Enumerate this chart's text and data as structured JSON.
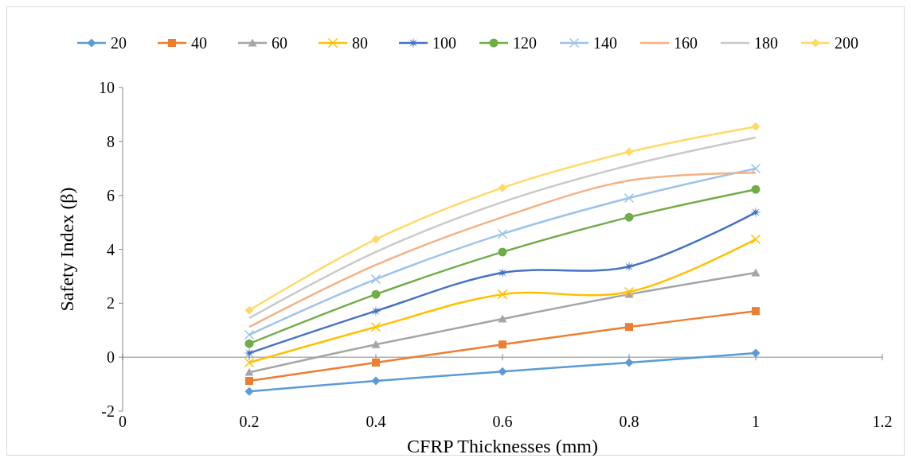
{
  "chart_data": {
    "type": "line",
    "xlabel": "CFRP Thicknesses (mm)",
    "ylabel": "Safety Index (β)",
    "x": [
      0.2,
      0.4,
      0.6,
      0.8,
      1
    ],
    "xlim": [
      0,
      1.2
    ],
    "xticks": [
      0,
      0.2,
      0.4,
      0.6,
      0.8,
      1,
      1.2
    ],
    "ylim": [
      -2,
      10
    ],
    "yticks": [
      -2,
      0,
      2,
      4,
      6,
      8,
      10
    ],
    "legend": "top",
    "series": [
      {
        "name": "20",
        "color": "#5b9bd5",
        "marker": "diamond",
        "values": [
          -1.27,
          -0.88,
          -0.53,
          -0.2,
          0.15
        ]
      },
      {
        "name": "40",
        "color": "#ed7d31",
        "marker": "square",
        "values": [
          -0.88,
          -0.2,
          0.47,
          1.12,
          1.71
        ]
      },
      {
        "name": "60",
        "color": "#a5a5a5",
        "marker": "triangle",
        "values": [
          -0.56,
          0.47,
          1.42,
          2.33,
          3.13
        ]
      },
      {
        "name": "80",
        "color": "#ffc000",
        "marker": "cross",
        "values": [
          -0.2,
          1.12,
          2.33,
          2.42,
          4.37
        ]
      },
      {
        "name": "100",
        "color": "#4472c4",
        "marker": "star",
        "values": [
          0.15,
          1.71,
          3.13,
          3.36,
          5.37
        ]
      },
      {
        "name": "120",
        "color": "#70ad47",
        "marker": "circle",
        "values": [
          0.5,
          2.33,
          3.9,
          5.19,
          6.22
        ]
      },
      {
        "name": "140",
        "color": "#9dc3e6",
        "marker": "cross",
        "values": [
          0.83,
          2.89,
          4.57,
          5.9,
          6.99
        ]
      },
      {
        "name": "160",
        "color": "#f4b183",
        "marker": "none",
        "values": [
          1.12,
          3.42,
          5.19,
          6.55,
          6.84
        ]
      },
      {
        "name": "180",
        "color": "#c9c9c9",
        "marker": "none",
        "values": [
          1.45,
          3.9,
          5.75,
          7.11,
          8.14
        ]
      },
      {
        "name": "200",
        "color": "#ffd966",
        "marker": "diamond",
        "values": [
          1.74,
          4.37,
          6.28,
          7.61,
          8.55
        ]
      }
    ]
  }
}
